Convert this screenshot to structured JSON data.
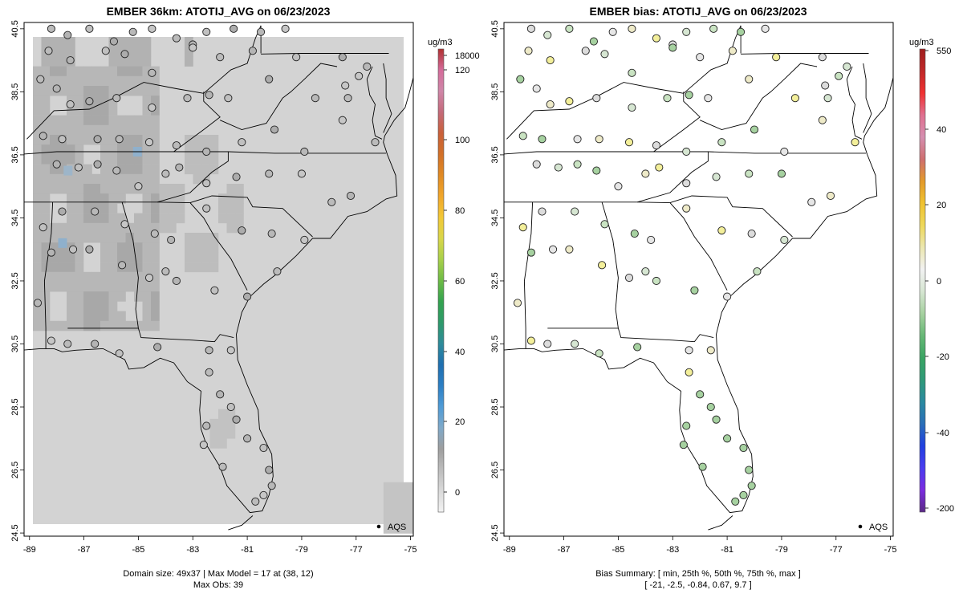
{
  "chart_data": [
    {
      "type": "heatmap",
      "title": "EMBER 36km: ATOTIJ_AVG on 06/23/2023",
      "x_ticks": [
        -89,
        -87,
        -85,
        -83,
        -81,
        -79,
        -77,
        -75
      ],
      "y_ticks": [
        24.5,
        26.5,
        28.5,
        30.5,
        32.5,
        34.5,
        36.5,
        38.5,
        40.5
      ],
      "xlim": [
        -89.2,
        -74.9
      ],
      "ylim": [
        24.4,
        40.7
      ],
      "colorbar_title": "ug/m3",
      "colorbar_ticks": [
        "0",
        "20",
        "40",
        "60",
        "80",
        "100",
        "120",
        "18000"
      ],
      "colorbar_colors": [
        "#f2f2f2",
        "#d9d9d9",
        "#bdbdbd",
        "#9e9e9e",
        "#7fa9c9",
        "#4f9bd6",
        "#2c7fc4",
        "#1f6fb0",
        "#2e8b9a",
        "#2e9a6a",
        "#33a34f",
        "#6dbb45",
        "#a8d04a",
        "#d9d64a",
        "#f2c836",
        "#f0a62a",
        "#e08a24",
        "#d27028",
        "#c9603a",
        "#c46a7a",
        "#cf86a8",
        "#d46b9a",
        "#b03030"
      ],
      "legend": "AQS",
      "footer_lines": [
        "Domain size: 49x37 | Max Model = 17 at (38, 12)",
        "Max Obs: 39"
      ]
    },
    {
      "type": "scatter",
      "title": "EMBER bias: ATOTIJ_AVG on 06/23/2023",
      "x_ticks": [
        -89,
        -87,
        -85,
        -83,
        -81,
        -79,
        -77,
        -75
      ],
      "y_ticks": [
        24.5,
        26.5,
        28.5,
        30.5,
        32.5,
        34.5,
        36.5,
        38.5,
        40.5
      ],
      "xlim": [
        -89.2,
        -74.9
      ],
      "ylim": [
        24.4,
        40.7
      ],
      "colorbar_title": "ug/m3",
      "colorbar_ticks": [
        "-200",
        "-40",
        "-20",
        "0",
        "20",
        "40",
        "550"
      ],
      "colorbar_colors": [
        "#5b2a86",
        "#7b2be0",
        "#4a3cf0",
        "#2040e0",
        "#2a6fb8",
        "#2a8aa0",
        "#2f9a78",
        "#3aa563",
        "#67b876",
        "#a6d1a0",
        "#d6e6d2",
        "#f2f2f2",
        "#ece7b0",
        "#eed85a",
        "#f0c230",
        "#e39a2a",
        "#cf6f6f",
        "#d58fb0",
        "#e07090",
        "#f03030",
        "#c02828",
        "#a01e1e"
      ],
      "legend": "AQS",
      "summary_lines": [
        "Bias Summary: [ min, 25th %, 50th %, 75th %, max ]",
        "[ -21,   -2.5,   -0.84,   0.67,   9.7 ]"
      ]
    }
  ]
}
